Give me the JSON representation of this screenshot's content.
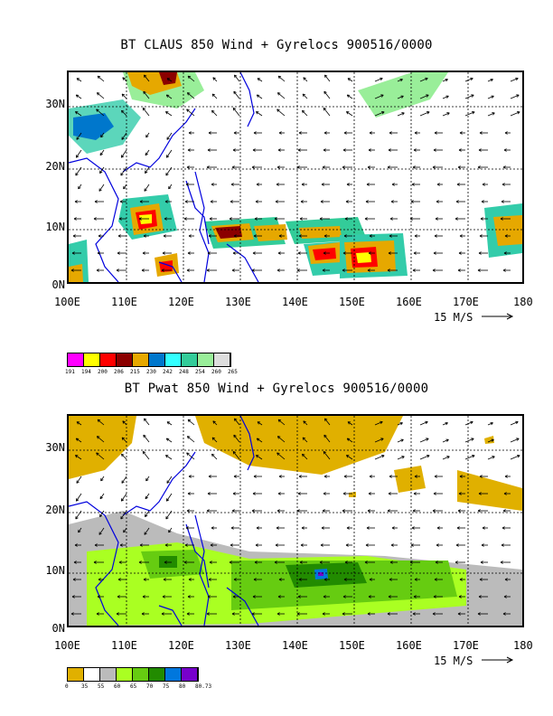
{
  "panels": [
    {
      "title": "BT CLAUS 850 Wind + Gyrelocs 900516/0000",
      "y_labels": [
        "30N",
        "20N",
        "10N",
        "0N"
      ],
      "x_labels": [
        "100E",
        "110E",
        "120E",
        "130E",
        "140E",
        "150E",
        "160E",
        "170E",
        "180"
      ],
      "scale_label": "15 M/S",
      "legend_colors": [
        "#ff00ff",
        "#ffff00",
        "#ff0000",
        "#8b0000",
        "#e6a800",
        "#0077cc",
        "#33ffff",
        "#33cc99",
        "#99ee99",
        "#dddddd"
      ],
      "legend_labels": [
        "191",
        "194",
        "200",
        "206",
        "215",
        "230",
        "242",
        "248",
        "254",
        "260",
        "265"
      ]
    },
    {
      "title": "BT Pwat 850 Wind + Gyrelocs 900516/0000",
      "y_labels": [
        "30N",
        "20N",
        "10N",
        "0N"
      ],
      "x_labels": [
        "100E",
        "110E",
        "120E",
        "130E",
        "140E",
        "150E",
        "160E",
        "170E",
        "180"
      ],
      "scale_label": "15 M/S",
      "legend_colors": [
        "#e0b000",
        "#ffffff",
        "#bbbbbb",
        "#aaff22",
        "#66cc11",
        "#228b00",
        "#0077dd",
        "#7700cc"
      ],
      "legend_labels": [
        "0",
        "35",
        "55",
        "60",
        "65",
        "70",
        "75",
        "80",
        "80.73"
      ]
    }
  ]
}
